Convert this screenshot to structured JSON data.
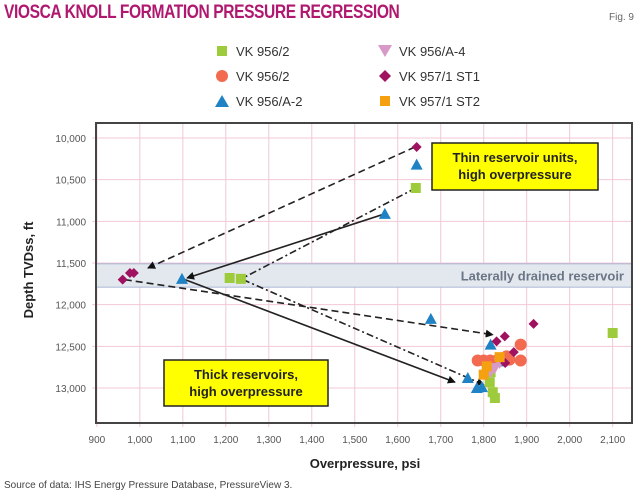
{
  "chart_data": {
    "type": "scatter",
    "title": "Viosca Knoll formation pressure regression",
    "figure_label": "Fig. 9",
    "xlabel": "Overpressure, psi",
    "ylabel": "Depth TVDss, ft",
    "xlim": [
      898,
      2145
    ],
    "ylim": [
      13420,
      9820
    ],
    "y_inverted": true,
    "grid": true,
    "x_ticks": [
      "900",
      "1,000",
      "1,100",
      "1,200",
      "1,300",
      "1,400",
      "1,500",
      "1,600",
      "1,700",
      "1,800",
      "1,900",
      "2,000",
      "2,100"
    ],
    "x_tick_values": [
      900,
      1000,
      1100,
      1200,
      1300,
      1400,
      1500,
      1600,
      1700,
      1800,
      1900,
      2000,
      2100
    ],
    "y_ticks": [
      "10,000",
      "10,500",
      "11,000",
      "11,500",
      "12,000",
      "12,500",
      "13,000"
    ],
    "y_tick_values": [
      10000,
      10500,
      11000,
      11500,
      12000,
      12500,
      13000
    ],
    "legend_placement": "top",
    "series": [
      {
        "name": "VK 956/2",
        "marker": "square",
        "color": "#9dcb3c",
        "points": [
          [
            1642,
            10600
          ],
          [
            1209,
            11680
          ],
          [
            1235,
            11690
          ],
          [
            2100,
            12340
          ],
          [
            1816,
            12810
          ],
          [
            1814,
            12930
          ],
          [
            1821,
            13050
          ],
          [
            1826,
            13120
          ]
        ]
      },
      {
        "name": "VK 956/2",
        "marker": "circle",
        "color": "#f26a50",
        "points": [
          [
            1886,
            12480
          ],
          [
            1886,
            12670
          ],
          [
            1786,
            12670
          ],
          [
            1800,
            12670
          ],
          [
            1815,
            12670
          ],
          [
            1830,
            12670
          ],
          [
            1853,
            12620
          ],
          [
            1860,
            12660
          ]
        ]
      },
      {
        "name": "VK 956/A-2",
        "marker": "triangle-up",
        "color": "#1f82c4",
        "points": [
          [
            1644,
            10320
          ],
          [
            1570,
            10910
          ],
          [
            1098,
            11690
          ],
          [
            1677,
            12170
          ],
          [
            1816,
            12480
          ],
          [
            1842,
            12680
          ],
          [
            1763,
            12880
          ],
          [
            1784,
            13000
          ],
          [
            1796,
            12990
          ]
        ]
      },
      {
        "name": "VK 956/A-4",
        "marker": "triangle-down",
        "color": "#d79ac6",
        "points": [
          [
            1837,
            12700
          ],
          [
            1826,
            12760
          ],
          [
            1816,
            12810
          ]
        ]
      },
      {
        "name": "VK 957/1 ST1",
        "marker": "diamond",
        "color": "#a0125f",
        "points": [
          [
            1644,
            10108
          ],
          [
            960,
            11700
          ],
          [
            977,
            11620
          ],
          [
            986,
            11620
          ],
          [
            1916,
            12230
          ],
          [
            1849,
            12380
          ],
          [
            1830,
            12440
          ],
          [
            1870,
            12570
          ],
          [
            1850,
            12700
          ]
        ]
      },
      {
        "name": "VK 957/1 ST2",
        "marker": "square",
        "color": "#f5a00f",
        "points": [
          [
            1837,
            12630
          ],
          [
            1807,
            12740
          ],
          [
            1800,
            12840
          ]
        ]
      }
    ],
    "band": {
      "y_range": [
        11510,
        11790
      ],
      "label": "Laterally drained reservoir"
    },
    "arrows": [
      {
        "from": [
          1640,
          10108
        ],
        "to": [
          1019,
          11560
        ],
        "style": "dashed",
        "head": true
      },
      {
        "from": [
          1642,
          10600
        ],
        "to": [
          1240,
          11680
        ],
        "style": "dashdot",
        "head": false
      },
      {
        "from": [
          1570,
          10910
        ],
        "to": [
          1110,
          11680
        ],
        "style": "solid",
        "head": true
      },
      {
        "from": [
          965,
          11700
        ],
        "to": [
          1821,
          12360
        ],
        "style": "dashed",
        "head": true
      },
      {
        "from": [
          1105,
          11700
        ],
        "to": [
          1733,
          12930
        ],
        "style": "solid",
        "head": true
      },
      {
        "from": [
          1240,
          11700
        ],
        "to": [
          1800,
          12960
        ],
        "style": "dashdot",
        "head": true
      }
    ],
    "annotations": [
      {
        "text": [
          "Thin reservoir units,",
          "high overpressure"
        ],
        "x": 1680,
        "y": 10200
      },
      {
        "text": [
          "Thick reservoirs,",
          "high overpressure"
        ],
        "x": 1050,
        "y": 13030
      }
    ]
  },
  "source": "Source of data: IHS Energy Pressure Database, PressureView 3."
}
